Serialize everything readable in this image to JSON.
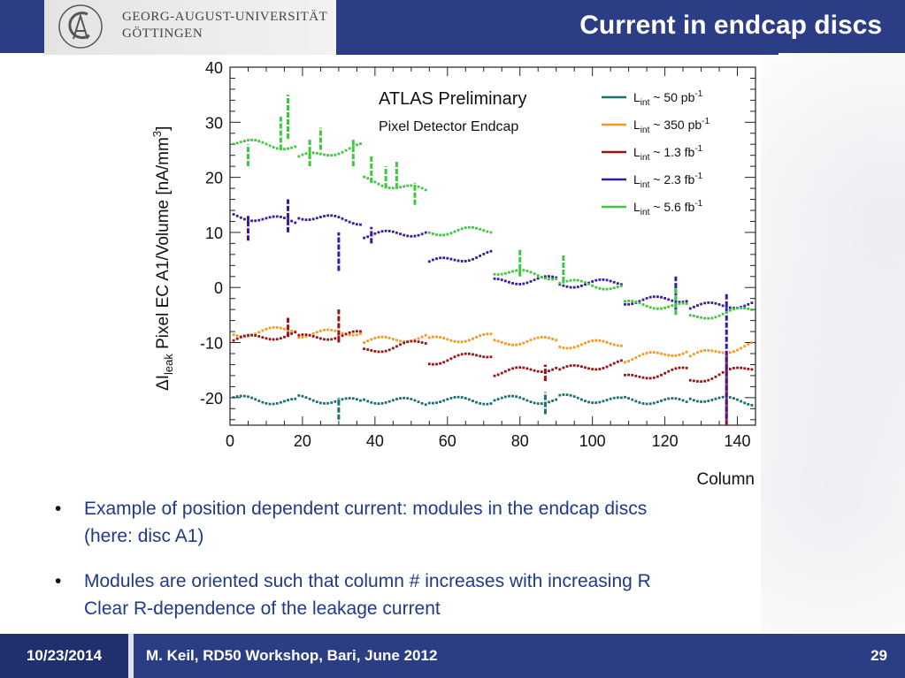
{
  "header": {
    "university_line1": "GEORG-AUGUST-UNIVERSITÄT",
    "university_line2": "GÖTTINGEN",
    "title": "Current in endcap discs"
  },
  "colors": {
    "header_bg": "#2b3d84",
    "bullet_text": "#1f3a8a",
    "series_50pb": "#1a6f6f",
    "series_350pb": "#f39a1c",
    "series_1_3fb": "#9a1414",
    "series_2_3fb": "#3a1aa0",
    "series_5_6fb": "#3cc83c"
  },
  "chart_data": {
    "type": "scatter",
    "annotation_main": "ATLAS Preliminary",
    "annotation_sub": "Pixel Detector Endcap",
    "xlabel": "Column",
    "ylabel": "ΔIleak Pixel EC A1/Volume [nA/mm3]",
    "ylabel_parts": {
      "delta": "ΔI",
      "sub": "leak",
      "rest": " Pixel EC A1/Volume [nA/mm",
      "sup": "3",
      "end": "]"
    },
    "xlim": [
      0,
      145
    ],
    "ylim": [
      -25,
      40
    ],
    "x_ticks": [
      "0",
      "20",
      "40",
      "60",
      "80",
      "100",
      "120",
      "140"
    ],
    "y_ticks": [
      "-20",
      "-10",
      "0",
      "10",
      "20",
      "30",
      "40"
    ],
    "legend_position": "top-right",
    "series": [
      {
        "name": "Lint ~ 50 pb-1",
        "legend": {
          "pre": "L",
          "sub": "int",
          "mid": " ~ 50 pb",
          "sup": "-1"
        },
        "color": "#1a6f6f",
        "segments": [
          [
            1,
            18,
            -20.2,
            -20.8
          ],
          [
            19,
            36,
            -20.2,
            -20.8
          ],
          [
            37,
            54,
            -20.4,
            -20.8
          ],
          [
            55,
            72,
            -20.4,
            -20.6
          ],
          [
            73,
            90,
            -20.2,
            -20.6
          ],
          [
            91,
            108,
            -20.0,
            -20.6
          ],
          [
            109,
            126,
            -20.4,
            -20.8
          ],
          [
            127,
            144,
            -20.0,
            -20.8
          ]
        ],
        "spikes": [
          [
            30,
            -24,
            -20
          ],
          [
            87,
            -23,
            -19
          ]
        ]
      },
      {
        "name": "Lint ~ 350 pb-1",
        "legend": {
          "pre": "L",
          "sub": "int",
          "mid": " ~ 350 pb",
          "sup": "-1"
        },
        "color": "#f39a1c",
        "segments": [
          [
            1,
            18,
            -8.5,
            -7.5
          ],
          [
            19,
            36,
            -8.5,
            -8.0
          ],
          [
            37,
            54,
            -9.8,
            -9.0
          ],
          [
            55,
            72,
            -9.6,
            -9.0
          ],
          [
            73,
            90,
            -10.0,
            -9.5
          ],
          [
            91,
            108,
            -10.5,
            -10.0
          ],
          [
            109,
            126,
            -13.0,
            -11.5
          ],
          [
            127,
            144,
            -12.5,
            -10.5
          ]
        ],
        "spikes": []
      },
      {
        "name": "Lint ~ 1.3 fb-1",
        "legend": {
          "pre": "L",
          "sub": "int",
          "mid": " ~ 1.3 fb",
          "sup": "-1"
        },
        "color": "#9a1414",
        "segments": [
          [
            1,
            18,
            -9.5,
            -8.5
          ],
          [
            19,
            36,
            -9.2,
            -8.5
          ],
          [
            37,
            54,
            -11.5,
            -10.0
          ],
          [
            55,
            72,
            -13.5,
            -12.0
          ],
          [
            73,
            90,
            -15.5,
            -14.5
          ],
          [
            91,
            108,
            -15.0,
            -13.8
          ],
          [
            109,
            126,
            -16.5,
            -15.0
          ],
          [
            127,
            144,
            -17.0,
            -14.5
          ]
        ],
        "spikes": [
          [
            16,
            -9,
            -5.5
          ],
          [
            30,
            -10,
            -4.0
          ],
          [
            87,
            -17,
            -14
          ],
          [
            137,
            -25,
            -12
          ]
        ]
      },
      {
        "name": "Lint ~ 2.3 fb-1",
        "legend": {
          "pre": "L",
          "sub": "int",
          "mid": " ~ 2.3 fb",
          "sup": "-1"
        },
        "color": "#3a1aa0",
        "segments": [
          [
            1,
            18,
            13.0,
            12.0
          ],
          [
            19,
            36,
            13.0,
            12.0
          ],
          [
            37,
            54,
            9.5,
            10.0
          ],
          [
            55,
            72,
            4.5,
            6.0
          ],
          [
            73,
            90,
            1.0,
            1.5
          ],
          [
            91,
            108,
            0.5,
            1.0
          ],
          [
            109,
            126,
            -2.5,
            -2.0
          ],
          [
            127,
            144,
            -3.5,
            -3.0
          ]
        ],
        "spikes": [
          [
            5,
            8.5,
            13
          ],
          [
            16,
            10,
            16
          ],
          [
            30,
            3,
            10
          ],
          [
            39,
            8,
            11
          ],
          [
            123,
            -4,
            2
          ],
          [
            137,
            -24,
            -1
          ]
        ]
      },
      {
        "name": "Lint ~ 5.6 fb-1",
        "legend": {
          "pre": "L",
          "sub": "int",
          "mid": " ~ 5.6 fb",
          "sup": "-1"
        },
        "color": "#3cc83c",
        "segments": [
          [
            1,
            18,
            26.5,
            25.5
          ],
          [
            19,
            36,
            23.5,
            25.5
          ],
          [
            37,
            54,
            19.5,
            17.5
          ],
          [
            55,
            72,
            10.0,
            10.5
          ],
          [
            73,
            90,
            3.0,
            2.0
          ],
          [
            91,
            108,
            1.0,
            0.0
          ],
          [
            109,
            126,
            -3.0,
            -3.5
          ],
          [
            127,
            144,
            -5.5,
            -4.0
          ]
        ],
        "spikes": [
          [
            5,
            22,
            26
          ],
          [
            14,
            25,
            31
          ],
          [
            16,
            27,
            35
          ],
          [
            22,
            22,
            27
          ],
          [
            25,
            25,
            29
          ],
          [
            34,
            22,
            27
          ],
          [
            39,
            19,
            24
          ],
          [
            43,
            18,
            22
          ],
          [
            46,
            18,
            23
          ],
          [
            51,
            15,
            19
          ],
          [
            80,
            2,
            7
          ],
          [
            92,
            1,
            6
          ],
          [
            123,
            -5,
            0
          ]
        ]
      }
    ]
  },
  "bullets": [
    {
      "line1": "Example of position dependent current: modules in the endcap discs",
      "line2": "(here: disc A1)"
    },
    {
      "line1": "Modules are oriented such that column # increases with increasing R",
      "line2": "Clear R-dependence of the leakage current"
    }
  ],
  "footer": {
    "date": "10/23/2014",
    "event": "M. Keil, RD50 Workshop, Bari, June 2012",
    "page": "29"
  }
}
